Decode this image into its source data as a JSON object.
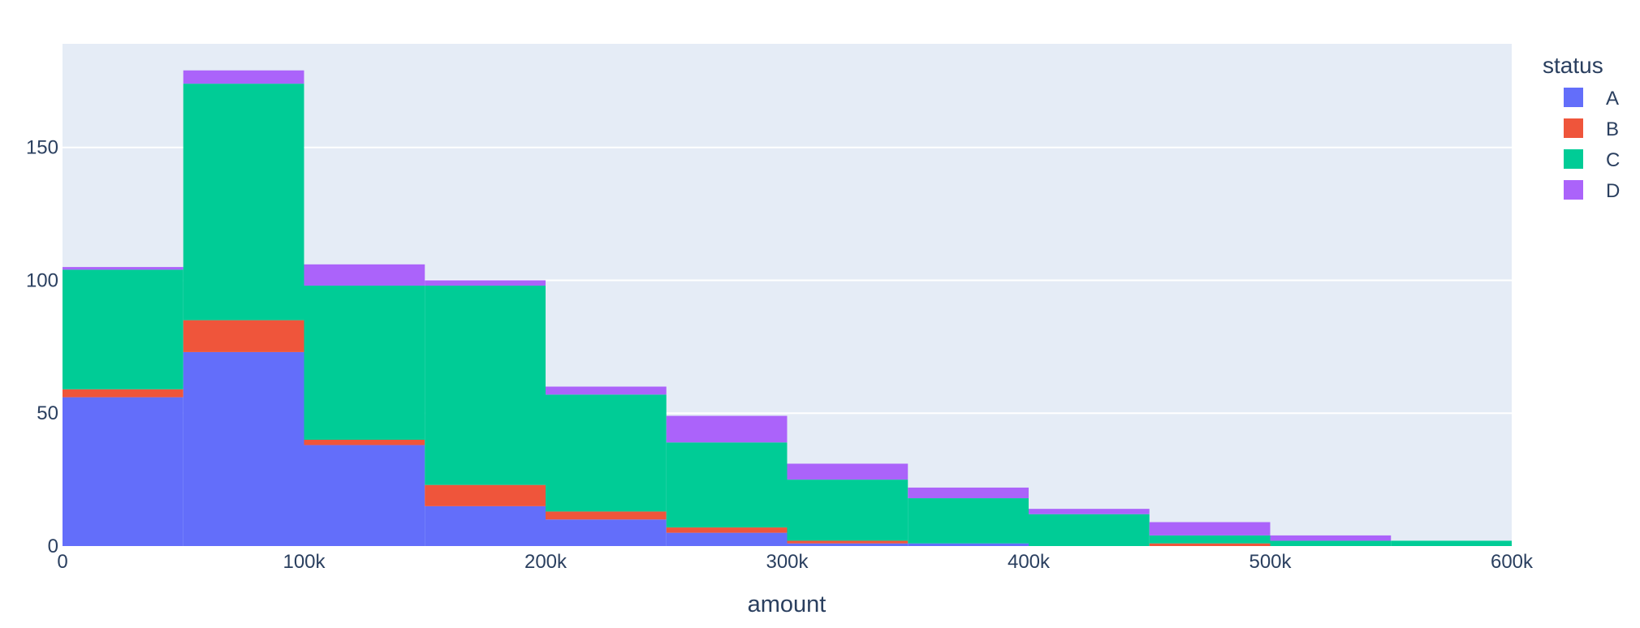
{
  "chart_data": {
    "type": "bar",
    "barmode": "stack",
    "xlabel": "amount",
    "ylabel": "",
    "xlim": [
      0,
      600000
    ],
    "ylim": [
      0,
      189
    ],
    "bin_width": 50000,
    "x_bin_starts": [
      0,
      50000,
      100000,
      150000,
      200000,
      250000,
      300000,
      350000,
      400000,
      450000,
      500000,
      550000
    ],
    "x_ticks": [
      0,
      100000,
      200000,
      300000,
      400000,
      500000,
      600000
    ],
    "x_tick_labels": [
      "0",
      "100k",
      "200k",
      "300k",
      "400k",
      "500k",
      "600k"
    ],
    "y_ticks": [
      0,
      50,
      100,
      150
    ],
    "y_tick_labels": [
      "0",
      "50",
      "100",
      "150"
    ],
    "grid": true,
    "legend": {
      "title": "status",
      "position": "top-right"
    },
    "series": [
      {
        "name": "A",
        "color": "#636efa",
        "values": [
          56,
          73,
          38,
          15,
          10,
          5,
          1,
          1,
          0,
          0,
          0,
          0
        ]
      },
      {
        "name": "B",
        "color": "#ef553b",
        "values": [
          3,
          12,
          2,
          8,
          3,
          2,
          1,
          0,
          0,
          1,
          0,
          0
        ]
      },
      {
        "name": "C",
        "color": "#00cc96",
        "values": [
          45,
          89,
          58,
          75,
          44,
          32,
          23,
          17,
          12,
          3,
          2,
          2
        ]
      },
      {
        "name": "D",
        "color": "#ab63fa",
        "values": [
          1,
          5,
          8,
          2,
          3,
          10,
          6,
          4,
          2,
          5,
          2,
          0
        ]
      }
    ]
  }
}
